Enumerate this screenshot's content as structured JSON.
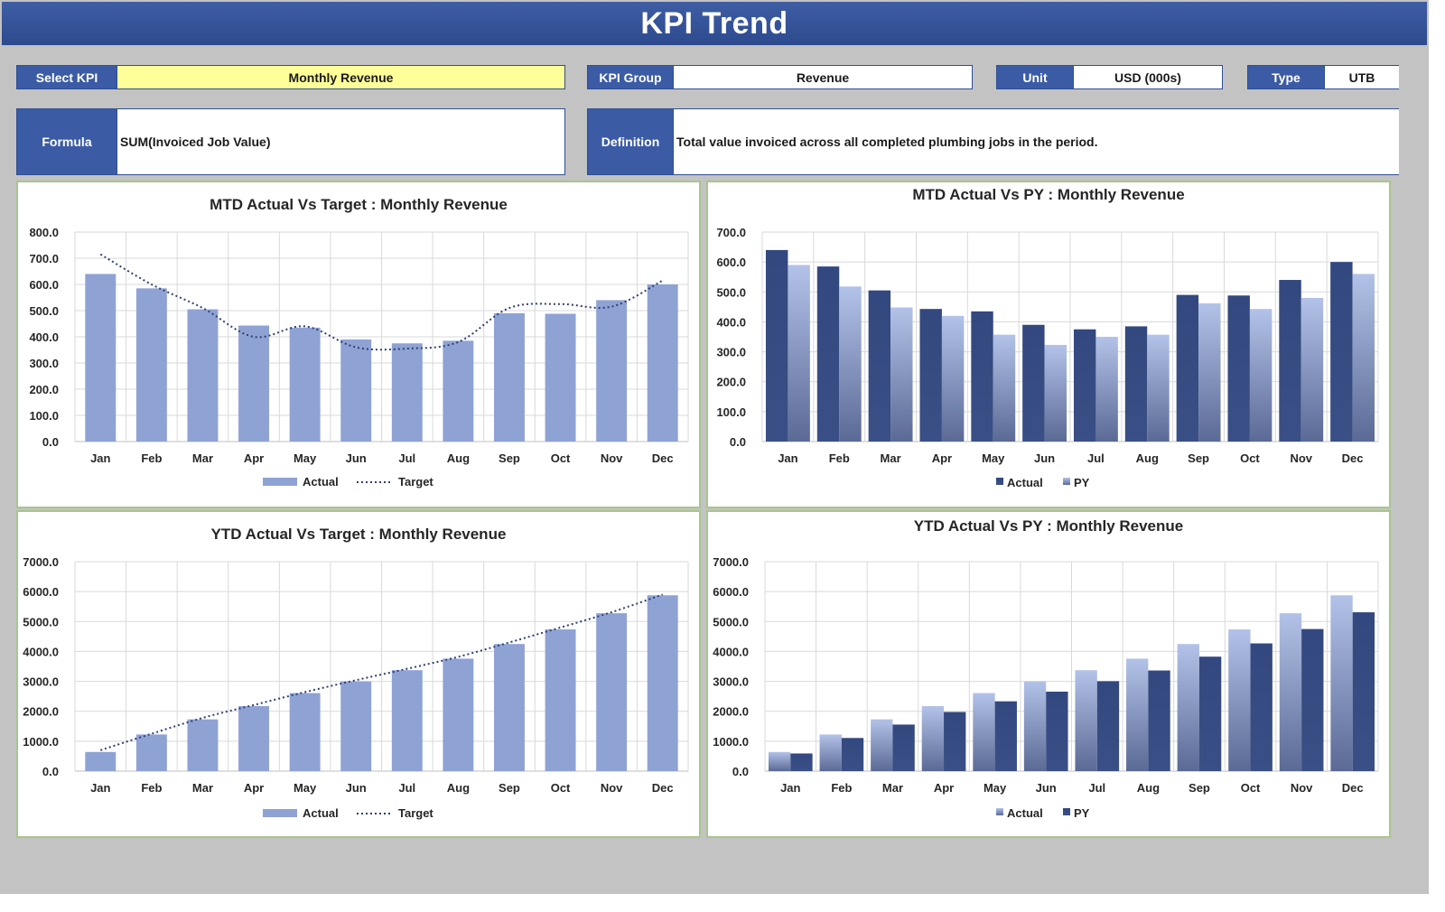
{
  "header": {
    "title": "KPI Trend"
  },
  "fields": {
    "select_kpi": {
      "label": "Select KPI",
      "value": "Monthly Revenue"
    },
    "kpi_group": {
      "label": "KPI Group",
      "value": "Revenue"
    },
    "unit": {
      "label": "Unit",
      "value": "USD (000s)"
    },
    "type": {
      "label": "Type",
      "value": "UTB"
    },
    "formula": {
      "label": "Formula",
      "value": "SUM(Invoiced Job Value)"
    },
    "definition": {
      "label": "Definition",
      "value": "Total value invoiced across all completed plumbing jobs in the period."
    }
  },
  "colors": {
    "title_bar": "#2d4a8e",
    "label_bg": "#3b5ba5",
    "highlight": "#ffff99",
    "bar_light": "#8fa2d4",
    "bar_dark": "#33487f",
    "bar_pale": "#a9b8e0",
    "panel_border": "#a9c58e"
  },
  "chart_data": [
    {
      "id": "mtd_target",
      "type": "bar",
      "title": "MTD Actual Vs Target : Monthly Revenue",
      "categories": [
        "Jan",
        "Feb",
        "Mar",
        "Apr",
        "May",
        "Jun",
        "Jul",
        "Aug",
        "Sep",
        "Oct",
        "Nov",
        "Dec"
      ],
      "yticks": [
        "0.0",
        "100.0",
        "200.0",
        "300.0",
        "400.0",
        "500.0",
        "600.0",
        "700.0",
        "800.0"
      ],
      "ylim": [
        0,
        800
      ],
      "series": [
        {
          "name": "Actual",
          "kind": "bar",
          "values": [
            640,
            585,
            505,
            443,
            435,
            390,
            375,
            385,
            490,
            488,
            540,
            600
          ]
        },
        {
          "name": "Target",
          "kind": "dotted-line",
          "values": [
            715,
            600,
            510,
            400,
            440,
            360,
            355,
            380,
            510,
            525,
            515,
            615
          ]
        }
      ],
      "legend": "bottom"
    },
    {
      "id": "mtd_py",
      "type": "bar",
      "title": "MTD Actual Vs PY : Monthly Revenue",
      "categories": [
        "Jan",
        "Feb",
        "Mar",
        "Apr",
        "May",
        "Jun",
        "Jul",
        "Aug",
        "Sep",
        "Oct",
        "Nov",
        "Dec"
      ],
      "yticks": [
        "0.0",
        "100.0",
        "200.0",
        "300.0",
        "400.0",
        "500.0",
        "600.0",
        "700.0"
      ],
      "ylim": [
        0,
        700
      ],
      "series": [
        {
          "name": "Actual",
          "kind": "bar",
          "values": [
            640,
            585,
            505,
            443,
            435,
            390,
            375,
            385,
            490,
            488,
            540,
            600
          ]
        },
        {
          "name": "PY",
          "kind": "bar",
          "values": [
            590,
            518,
            448,
            420,
            357,
            323,
            350,
            357,
            462,
            443,
            480,
            560
          ]
        }
      ],
      "legend": "bottom"
    },
    {
      "id": "ytd_target",
      "type": "bar",
      "title": "YTD Actual Vs Target : Monthly Revenue",
      "categories": [
        "Jan",
        "Feb",
        "Mar",
        "Apr",
        "May",
        "Jun",
        "Jul",
        "Aug",
        "Sep",
        "Oct",
        "Nov",
        "Dec"
      ],
      "yticks": [
        "0.0",
        "1000.0",
        "2000.0",
        "3000.0",
        "4000.0",
        "5000.0",
        "6000.0",
        "7000.0"
      ],
      "ylim": [
        0,
        7000
      ],
      "series": [
        {
          "name": "Actual",
          "kind": "bar",
          "values": [
            640,
            1225,
            1730,
            2173,
            2608,
            2998,
            3373,
            3758,
            4248,
            4736,
            5276,
            5876
          ]
        },
        {
          "name": "Target",
          "kind": "dotted-line",
          "values": [
            700,
            1250,
            1780,
            2210,
            2640,
            3040,
            3420,
            3820,
            4300,
            4800,
            5310,
            5900
          ]
        }
      ],
      "legend": "bottom"
    },
    {
      "id": "ytd_py",
      "type": "bar",
      "title": "YTD Actual Vs PY : Monthly Revenue",
      "categories": [
        "Jan",
        "Feb",
        "Mar",
        "Apr",
        "May",
        "Jun",
        "Jul",
        "Aug",
        "Sep",
        "Oct",
        "Nov",
        "Dec"
      ],
      "yticks": [
        "0.0",
        "1000.0",
        "2000.0",
        "3000.0",
        "4000.0",
        "5000.0",
        "6000.0",
        "7000.0"
      ],
      "ylim": [
        0,
        7000
      ],
      "series": [
        {
          "name": "Actual",
          "kind": "bar",
          "values": [
            640,
            1225,
            1730,
            2173,
            2608,
            2998,
            3373,
            3758,
            4248,
            4736,
            5276,
            5876
          ]
        },
        {
          "name": "PY",
          "kind": "bar",
          "values": [
            590,
            1108,
            1556,
            1976,
            2333,
            2656,
            3006,
            3363,
            3825,
            4268,
            4748,
            5308
          ]
        }
      ],
      "legend": "bottom"
    }
  ]
}
